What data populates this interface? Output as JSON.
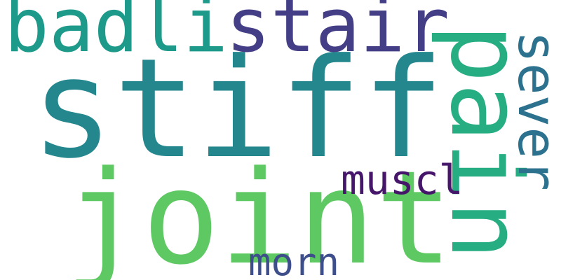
{
  "words": [
    {
      "text": "stiff",
      "color": "#24878e"
    },
    {
      "text": "joint",
      "color": "#5ec962"
    },
    {
      "text": "badli",
      "color": "#1e9a8a"
    },
    {
      "text": "stair",
      "color": "#433e85"
    },
    {
      "text": "pain",
      "color": "#26ad81"
    },
    {
      "text": "sever",
      "color": "#2c718e"
    },
    {
      "text": "muscl",
      "color": "#46166b"
    },
    {
      "text": "morn",
      "color": "#3d4e8a"
    }
  ]
}
